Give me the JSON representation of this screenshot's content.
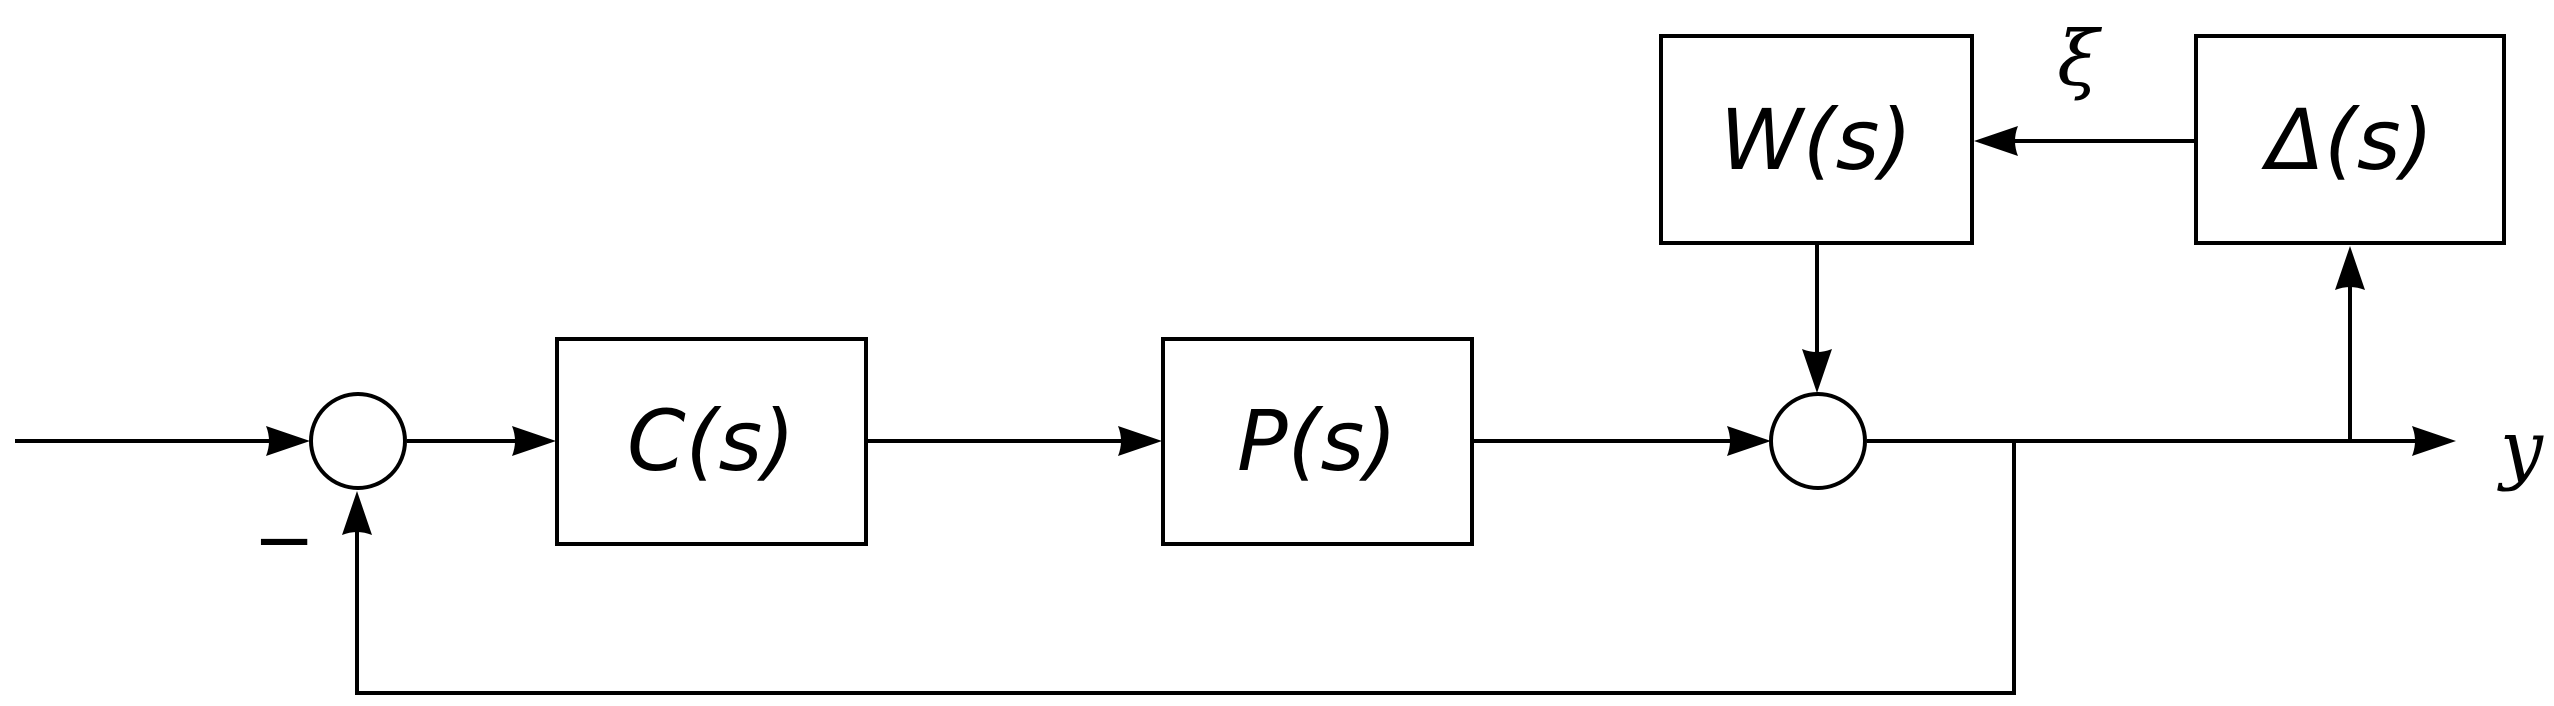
{
  "blocks": {
    "controller": {
      "label": "C(s)"
    },
    "plant": {
      "label": "P(s)"
    },
    "weight": {
      "label": "W(s)"
    },
    "uncertainty": {
      "label": "Δ(s)"
    }
  },
  "signals": {
    "output": "y",
    "perturbation": "ξ"
  },
  "summing_junctions": {
    "feedback_sign": "−"
  },
  "colors": {
    "line": "#000000",
    "background": "#ffffff"
  }
}
